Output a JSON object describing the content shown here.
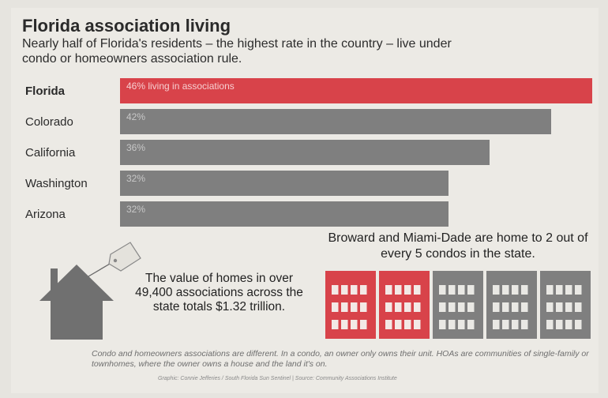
{
  "title": "Florida association living",
  "subtitle": "Nearly half of Florida's residents – the highest rate in the country – live under condo or homeowners association rule.",
  "chart_data": {
    "type": "bar",
    "orientation": "horizontal",
    "categories": [
      "Florida",
      "Colorado",
      "California",
      "Washington",
      "Arizona"
    ],
    "values": [
      46,
      42,
      36,
      32,
      32
    ],
    "value_labels": [
      "46% living in associations",
      "42%",
      "36%",
      "32%",
      "32%"
    ],
    "highlight": "Florida",
    "colors": {
      "highlight": "#d8434a",
      "default": "#7f7f7f"
    }
  },
  "house_text": "The value of homes in over 49,400 associations across the state totals $1.32 trillion.",
  "condo_text": "Broward and Miami-Dade are home to 2 out of every 5 condos in the state.",
  "condos": {
    "total": 5,
    "highlighted": 2,
    "colors": {
      "highlight": "#d8434a",
      "default": "#7f7f7f"
    }
  },
  "icons": [
    "house-icon",
    "price-tag-icon",
    "condo-building-icon"
  ],
  "footnote": "Condo and homeowners associations are different. In a condo, an owner only owns their unit. HOAs are communities of single-family or townhomes, where the owner owns a house and the land it's on.",
  "credit": "Graphic: Connie Jefferies / South Florida Sun Sentinel | Source: Community Associations Institute"
}
